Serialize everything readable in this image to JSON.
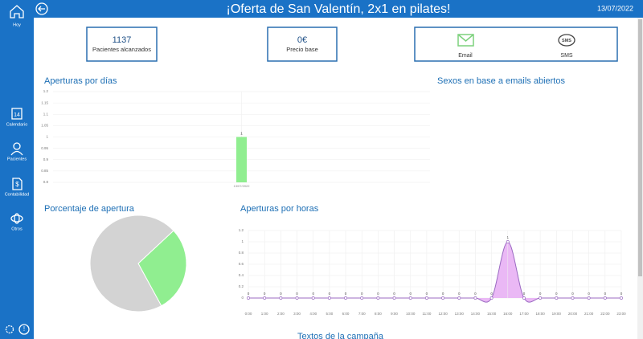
{
  "sidebar": {
    "items": [
      "Hoy",
      "Calendario",
      "Pacientes",
      "Contabilidad",
      "Otros"
    ]
  },
  "header": {
    "title": "¡Oferta de San Valentín, 2x1 en pilates!",
    "date": "13/07/2022"
  },
  "stats": [
    {
      "value": "1137",
      "label": "Pacientes alcanzados"
    },
    {
      "value": "0€",
      "label": "Precio base"
    }
  ],
  "channels": [
    "Email",
    "SMS"
  ],
  "sections": {
    "gender_title": "Sexos en base a emails abiertos",
    "texts_title": "Textos de la campaña"
  },
  "chart_data": [
    {
      "type": "bar",
      "title": "Aperturas por días",
      "categories": [
        "13/07/2022"
      ],
      "values": [
        1
      ],
      "color": "#90ee90",
      "ylim": [
        0.8,
        1.2
      ],
      "yticks": [
        0.8,
        0.85,
        0.9,
        0.95,
        1,
        1.05,
        1.1,
        1.15,
        1.2
      ],
      "grid": true
    },
    {
      "type": "pie",
      "title": "Porcentaje de apertura",
      "values": [
        29,
        71
      ],
      "colors": [
        "#90ee90",
        "#d3d3d3"
      ]
    },
    {
      "type": "area",
      "title": "Aperturas por horas",
      "categories": [
        "0:00",
        "1:00",
        "2:00",
        "3:00",
        "4:00",
        "5:00",
        "6:00",
        "7:00",
        "8:00",
        "9:00",
        "10:00",
        "11:00",
        "12:00",
        "13:00",
        "14:00",
        "15:00",
        "16:00",
        "17:00",
        "18:00",
        "19:00",
        "20:00",
        "21:00",
        "22:00",
        "23:00"
      ],
      "values": [
        0,
        0,
        0,
        0,
        0,
        0,
        0,
        0,
        0,
        0,
        0,
        0,
        0,
        0,
        0,
        0,
        1,
        0,
        0,
        0,
        0,
        0,
        0,
        0
      ],
      "color": "#eab8f5",
      "line_color": "#9b6bc2",
      "ylim": [
        0,
        1.2
      ],
      "yticks": [
        0,
        0.2,
        0.4,
        0.6,
        0.8,
        1,
        1.2
      ],
      "grid": true
    }
  ]
}
